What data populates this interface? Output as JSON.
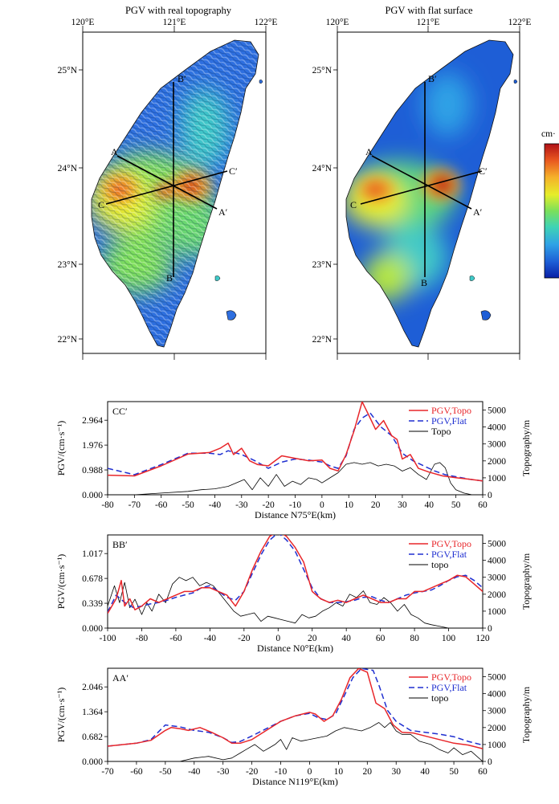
{
  "maps": [
    {
      "id": "topo",
      "title": "PGV with real topography",
      "xticks": [
        "120°E",
        "121°E",
        "122°E"
      ],
      "yticks": [
        "25°N",
        "24°N",
        "23°N",
        "22°N"
      ],
      "profile_labels": {
        "A": "A",
        "A2": "A′",
        "B": "B",
        "B2": "B′",
        "C": "C",
        "C2": "C′"
      }
    },
    {
      "id": "flat",
      "title": "PGV with flat surface",
      "xticks": [
        "120°E",
        "121°E",
        "122°E"
      ],
      "yticks": [
        "25°N",
        "24°N",
        "23°N",
        "22°N"
      ],
      "profile_labels": {
        "A": "A",
        "A2": "A′",
        "B": "B",
        "B2": "B′",
        "C": "C",
        "C2": "C′"
      }
    }
  ],
  "colorbar": {
    "unit_label": "cm·",
    "colors": [
      "#0a1fa6",
      "#1e5ed6",
      "#2fa2e6",
      "#3fd3b5",
      "#7be05a",
      "#e6ee2a",
      "#f5b12a",
      "#e8561f",
      "#b01016"
    ]
  },
  "colors": {
    "pgv_topo": "#e8262a",
    "pgv_flat": "#1f2fd0",
    "topo": "#000000"
  },
  "chart_data": [
    {
      "type": "line",
      "panel": "CC′",
      "title": "CC′",
      "xlabel": "Distance N75°E(km)",
      "ylabel": "PGV/(cm·s⁻¹)",
      "y2label": "Topography/m",
      "xlim": [
        -80,
        60
      ],
      "xticks": [
        "-80",
        "-70",
        "-60",
        "-50",
        "-40",
        "-30",
        "-20",
        "-10",
        "0",
        "10",
        "20",
        "30",
        "40",
        "50",
        "60"
      ],
      "ylim": [
        0,
        3.705
      ],
      "yticks": [
        "0.000",
        "0.988",
        "1.976",
        "2.964"
      ],
      "y2lim": [
        0,
        5500
      ],
      "y2ticks": [
        "0",
        "1000",
        "2000",
        "3000",
        "4000",
        "5000"
      ],
      "legend": [
        "PGV,Topo",
        "PGV,Flat",
        "Topo"
      ],
      "series": [
        {
          "name": "PGV,Topo",
          "x": [
            -80,
            -70,
            -60,
            -50,
            -42,
            -38,
            -35,
            -33,
            -30,
            -27,
            -24,
            -20,
            -15,
            -10,
            -5,
            0,
            3,
            6,
            9,
            12,
            15,
            18,
            20,
            23,
            26,
            28,
            30,
            33,
            36,
            40,
            45,
            50,
            55,
            60
          ],
          "y": [
            0.78,
            0.75,
            1.15,
            1.62,
            1.68,
            1.85,
            2.05,
            1.6,
            1.85,
            1.35,
            1.2,
            1.15,
            1.55,
            1.45,
            1.35,
            1.38,
            1.05,
            0.95,
            1.6,
            2.55,
            3.7,
            3.05,
            2.6,
            2.95,
            2.35,
            2.2,
            1.42,
            1.6,
            1.05,
            0.9,
            0.75,
            0.68,
            0.62,
            0.55
          ]
        },
        {
          "name": "PGV,Flat",
          "x": [
            -80,
            -70,
            -60,
            -50,
            -42,
            -38,
            -35,
            -30,
            -25,
            -20,
            -15,
            -10,
            -5,
            0,
            3,
            6,
            9,
            12,
            15,
            18,
            22,
            26,
            30,
            34,
            38,
            42,
            46,
            50,
            55,
            60
          ],
          "y": [
            1.05,
            0.8,
            1.2,
            1.65,
            1.65,
            1.6,
            1.75,
            1.6,
            1.35,
            1.05,
            1.3,
            1.42,
            1.38,
            1.3,
            1.15,
            1.05,
            1.55,
            2.6,
            3.05,
            3.25,
            2.7,
            2.35,
            1.65,
            1.35,
            1.15,
            0.95,
            0.8,
            0.72,
            0.62,
            0.55
          ]
        },
        {
          "name": "Topo",
          "axis": "y2",
          "x": [
            -80,
            -70,
            -60,
            -50,
            -45,
            -40,
            -35,
            -32,
            -29,
            -26,
            -23,
            -20,
            -17,
            -14,
            -11,
            -8,
            -5,
            -2,
            0,
            3,
            6,
            9,
            12,
            15,
            18,
            21,
            24,
            27,
            30,
            33,
            36,
            39,
            42,
            44,
            46,
            48,
            50,
            53,
            56,
            60
          ],
          "y": [
            0,
            0,
            100,
            200,
            300,
            350,
            500,
            700,
            900,
            300,
            1000,
            500,
            1200,
            500,
            800,
            600,
            1000,
            900,
            700,
            1000,
            1300,
            1800,
            1900,
            1800,
            1900,
            1700,
            1800,
            1700,
            1400,
            1600,
            1200,
            900,
            1800,
            1900,
            1600,
            700,
            300,
            100,
            0,
            0
          ]
        }
      ]
    },
    {
      "type": "line",
      "panel": "BB′",
      "title": "BB′",
      "xlabel": "Distance N0°E(km)",
      "ylabel": "PGV/(cm·s⁻¹)",
      "y2label": "Topography/m",
      "xlim": [
        -100,
        120
      ],
      "xticks": [
        "-100",
        "-80",
        "-60",
        "-40",
        "-20",
        "0",
        "20",
        "40",
        "60",
        "80",
        "100",
        "120"
      ],
      "ylim": [
        0,
        1.271
      ],
      "yticks": [
        "0.000",
        "0.339",
        "0.678",
        "1.017"
      ],
      "y2lim": [
        0,
        5500
      ],
      "y2ticks": [
        "0",
        "1000",
        "2000",
        "3000",
        "4000",
        "5000"
      ],
      "legend": [
        "PGV,Topo",
        "PGV,Flat",
        "topo"
      ],
      "series": [
        {
          "name": "PGV,Topo",
          "x": [
            -100,
            -95,
            -92,
            -90,
            -87,
            -84,
            -80,
            -75,
            -70,
            -65,
            -60,
            -55,
            -50,
            -45,
            -40,
            -35,
            -30,
            -25,
            -20,
            -15,
            -10,
            -5,
            0,
            5,
            10,
            15,
            20,
            25,
            30,
            35,
            40,
            45,
            50,
            55,
            60,
            65,
            70,
            75,
            80,
            85,
            90,
            95,
            100,
            105,
            110,
            115,
            120
          ],
          "y": [
            0.2,
            0.4,
            0.65,
            0.3,
            0.4,
            0.25,
            0.3,
            0.4,
            0.35,
            0.4,
            0.45,
            0.5,
            0.5,
            0.55,
            0.55,
            0.5,
            0.45,
            0.3,
            0.5,
            0.8,
            1.05,
            1.25,
            1.32,
            1.25,
            1.1,
            0.9,
            0.5,
            0.4,
            0.35,
            0.38,
            0.35,
            0.4,
            0.45,
            0.4,
            0.35,
            0.35,
            0.4,
            0.4,
            0.5,
            0.5,
            0.55,
            0.6,
            0.65,
            0.72,
            0.7,
            0.6,
            0.5
          ]
        },
        {
          "name": "PGV,Flat",
          "x": [
            -100,
            -95,
            -90,
            -85,
            -80,
            -75,
            -70,
            -65,
            -60,
            -55,
            -50,
            -45,
            -40,
            -35,
            -30,
            -25,
            -20,
            -15,
            -10,
            -5,
            0,
            5,
            10,
            15,
            20,
            25,
            30,
            35,
            40,
            45,
            50,
            55,
            60,
            65,
            70,
            75,
            80,
            85,
            90,
            95,
            100,
            105,
            110,
            115,
            120
          ],
          "y": [
            0.22,
            0.45,
            0.35,
            0.28,
            0.3,
            0.33,
            0.35,
            0.38,
            0.42,
            0.45,
            0.48,
            0.55,
            0.58,
            0.5,
            0.42,
            0.38,
            0.5,
            0.75,
            1.0,
            1.2,
            1.3,
            1.2,
            1.05,
            0.8,
            0.55,
            0.4,
            0.35,
            0.35,
            0.36,
            0.38,
            0.42,
            0.43,
            0.38,
            0.35,
            0.4,
            0.45,
            0.48,
            0.5,
            0.52,
            0.58,
            0.65,
            0.7,
            0.72,
            0.65,
            0.55
          ]
        },
        {
          "name": "topo",
          "axis": "y2",
          "x": [
            -100,
            -96,
            -93,
            -90,
            -87,
            -84,
            -80,
            -77,
            -74,
            -70,
            -66,
            -62,
            -58,
            -54,
            -50,
            -46,
            -42,
            -38,
            -34,
            -30,
            -26,
            -22,
            -18,
            -14,
            -10,
            -6,
            -2,
            2,
            6,
            10,
            14,
            18,
            22,
            26,
            30,
            34,
            38,
            42,
            46,
            50,
            54,
            58,
            62,
            66,
            70,
            74,
            78,
            82,
            86,
            90,
            95,
            100,
            110,
            120
          ],
          "y": [
            1300,
            2500,
            1500,
            2700,
            1200,
            1700,
            800,
            1500,
            1000,
            2000,
            1500,
            2600,
            3000,
            2800,
            3000,
            2500,
            2700,
            2500,
            2000,
            1500,
            1000,
            700,
            800,
            900,
            400,
            700,
            600,
            500,
            400,
            300,
            800,
            600,
            700,
            1000,
            1200,
            1500,
            1300,
            2000,
            1800,
            2200,
            1500,
            1400,
            1800,
            1500,
            1000,
            1400,
            800,
            600,
            300,
            200,
            100,
            0,
            0,
            0
          ]
        }
      ]
    },
    {
      "type": "line",
      "panel": "AA′",
      "title": "AA′",
      "xlabel": "Distance N119°E(km)",
      "ylabel": "PGV/(cm·s⁻¹)",
      "y2label": "Topography/m",
      "xlim": [
        -70,
        60
      ],
      "xticks": [
        "-70",
        "-60",
        "-50",
        "-40",
        "-30",
        "-20",
        "-10",
        "0",
        "10",
        "20",
        "30",
        "40",
        "50",
        "60"
      ],
      "ylim": [
        0,
        2.5575
      ],
      "yticks": [
        "0.000",
        "0.682",
        "1.364",
        "2.046"
      ],
      "y2lim": [
        0,
        5500
      ],
      "y2ticks": [
        "0",
        "1000",
        "2000",
        "3000",
        "4000",
        "5000"
      ],
      "legend": [
        "PGV,Topo",
        "PGV,Flat",
        "topo"
      ],
      "series": [
        {
          "name": "PGV,Topo",
          "x": [
            -70,
            -60,
            -55,
            -50,
            -48,
            -45,
            -42,
            -38,
            -34,
            -30,
            -27,
            -24,
            -20,
            -15,
            -10,
            -5,
            0,
            2,
            5,
            8,
            11,
            14,
            17,
            20,
            23,
            26,
            29,
            32,
            36,
            40,
            45,
            50,
            55,
            60
          ],
          "y": [
            0.42,
            0.5,
            0.58,
            0.85,
            0.93,
            0.9,
            0.85,
            0.93,
            0.8,
            0.65,
            0.5,
            0.5,
            0.6,
            0.85,
            1.1,
            1.25,
            1.35,
            1.3,
            1.1,
            1.25,
            1.7,
            2.3,
            2.55,
            2.45,
            1.6,
            1.45,
            1.0,
            0.8,
            0.78,
            0.7,
            0.6,
            0.5,
            0.45,
            0.35
          ]
        },
        {
          "name": "PGV,Flat",
          "x": [
            -70,
            -60,
            -55,
            -50,
            -45,
            -40,
            -35,
            -30,
            -27,
            -24,
            -20,
            -15,
            -10,
            -5,
            0,
            3,
            6,
            9,
            12,
            15,
            18,
            22,
            24,
            27,
            30,
            35,
            40,
            45,
            50,
            55,
            60
          ],
          "y": [
            0.42,
            0.5,
            0.6,
            1.0,
            0.95,
            0.85,
            0.8,
            0.65,
            0.52,
            0.55,
            0.7,
            0.9,
            1.1,
            1.25,
            1.32,
            1.2,
            1.15,
            1.3,
            1.8,
            2.3,
            2.55,
            2.5,
            2.1,
            1.4,
            1.1,
            0.85,
            0.8,
            0.75,
            0.68,
            0.55,
            0.45
          ]
        },
        {
          "name": "topo",
          "axis": "y2",
          "x": [
            -70,
            -60,
            -55,
            -50,
            -45,
            -40,
            -35,
            -30,
            -27,
            -24,
            -22,
            -19,
            -16,
            -14,
            -12,
            -10,
            -8,
            -6,
            -3,
            0,
            3,
            6,
            9,
            12,
            15,
            18,
            21,
            24,
            26,
            28,
            30,
            32,
            35,
            38,
            42,
            45,
            48,
            50,
            53,
            56,
            58,
            60
          ],
          "y": [
            0,
            0,
            0,
            0,
            0,
            200,
            300,
            100,
            200,
            500,
            700,
            1000,
            600,
            800,
            1000,
            1300,
            700,
            1400,
            1200,
            1300,
            1400,
            1500,
            1800,
            2000,
            1900,
            1800,
            2000,
            2300,
            2000,
            2300,
            1800,
            1600,
            1600,
            1200,
            1000,
            700,
            500,
            800,
            400,
            600,
            300,
            0
          ]
        }
      ]
    }
  ]
}
